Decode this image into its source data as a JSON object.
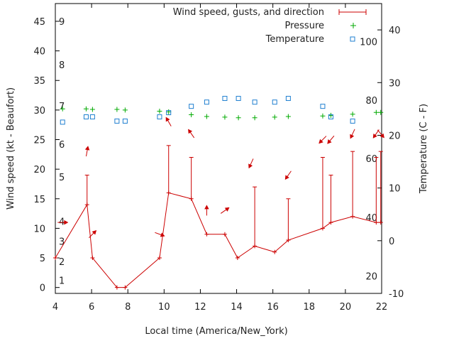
{
  "chart_data": {
    "type": "line",
    "xlabel": "Local time (America/New_York)",
    "ylabel_left": "Wind speed (kt - Beaufort)",
    "ylabel_right": "Temperature (C - F)",
    "xlim": [
      4,
      22
    ],
    "ylim_left": [
      -1,
      48
    ],
    "ylim_right": [
      -10,
      45
    ],
    "x_ticks": [
      4,
      6,
      8,
      10,
      12,
      14,
      16,
      18,
      20,
      22
    ],
    "y_left_ticks": [
      0,
      5,
      10,
      15,
      20,
      25,
      30,
      35,
      40,
      45
    ],
    "y_right_ticks": [
      -10,
      0,
      10,
      20,
      30,
      40
    ],
    "beaufort_labels": [
      {
        "label": "1",
        "kt": 1.2
      },
      {
        "label": "2",
        "kt": 4.4
      },
      {
        "label": "3",
        "kt": 7.8
      },
      {
        "label": "4",
        "kt": 11.2
      },
      {
        "label": "5",
        "kt": 18.7
      },
      {
        "label": "6",
        "kt": 24.2
      },
      {
        "label": "7",
        "kt": 30.7
      },
      {
        "label": "8",
        "kt": 37.7
      },
      {
        "label": "9",
        "kt": 45
      }
    ],
    "fahrenheit_labels": [
      {
        "label": "20",
        "c": -6.7
      },
      {
        "label": "40",
        "c": 4.4
      },
      {
        "label": "60",
        "c": 15.6
      },
      {
        "label": "80",
        "c": 26.7
      },
      {
        "label": "100",
        "c": 37.8
      }
    ],
    "legend": {
      "position": "top-right",
      "entries": [
        "Wind speed, gusts, and direction",
        "Pressure",
        "Temperature"
      ]
    },
    "colors": {
      "wind": "#cc0000",
      "pressure": "#00aa00",
      "temperature": "#1f7fd0"
    },
    "wind": {
      "name": "Wind speed, gusts, and direction",
      "x": [
        4.0,
        5.75,
        6.05,
        7.4,
        7.85,
        9.75,
        10.25,
        11.5,
        12.35,
        13.35,
        14.05,
        15.0,
        16.1,
        16.85,
        18.75,
        19.2,
        20.4,
        21.7,
        21.95
      ],
      "speed": [
        5,
        14,
        5,
        0,
        0,
        5,
        16,
        15,
        9,
        9,
        5,
        7,
        6,
        8,
        10,
        11,
        12,
        11,
        11
      ],
      "gusts": [
        null,
        19,
        null,
        null,
        null,
        null,
        24,
        22,
        null,
        null,
        null,
        17,
        null,
        15,
        22,
        19,
        23,
        22,
        23
      ]
    },
    "wind_direction_arrows": [
      {
        "x": 4.4,
        "kt": 11,
        "dir_deg": 270
      },
      {
        "x": 5.75,
        "kt": 23,
        "dir_deg": 190
      },
      {
        "x": 6.05,
        "kt": 9,
        "dir_deg": 225
      },
      {
        "x": 9.75,
        "kt": 9,
        "dir_deg": 290
      },
      {
        "x": 10.25,
        "kt": 28,
        "dir_deg": 150
      },
      {
        "x": 11.5,
        "kt": 26,
        "dir_deg": 145
      },
      {
        "x": 12.35,
        "kt": 13,
        "dir_deg": 180
      },
      {
        "x": 13.35,
        "kt": 13,
        "dir_deg": 235
      },
      {
        "x": 14.8,
        "kt": 21,
        "dir_deg": 25
      },
      {
        "x": 16.85,
        "kt": 19,
        "dir_deg": 35
      },
      {
        "x": 18.75,
        "kt": 25,
        "dir_deg": 45
      },
      {
        "x": 19.2,
        "kt": 25,
        "dir_deg": 40
      },
      {
        "x": 20.4,
        "kt": 26,
        "dir_deg": 25
      },
      {
        "x": 21.7,
        "kt": 26,
        "dir_deg": 35
      },
      {
        "x": 21.95,
        "kt": 26,
        "dir_deg": 320
      }
    ],
    "pressure": {
      "name": "Pressure",
      "x": [
        4.4,
        5.7,
        6.05,
        7.4,
        7.85,
        9.75,
        10.25,
        11.5,
        12.35,
        13.35,
        14.1,
        15.0,
        16.1,
        16.85,
        18.75,
        19.2,
        20.4,
        21.7,
        21.95
      ],
      "kt": [
        30.2,
        30.2,
        30.1,
        30.1,
        30.0,
        29.8,
        29.7,
        29.2,
        28.9,
        28.8,
        28.7,
        28.7,
        28.8,
        28.9,
        29.0,
        29.1,
        29.3,
        29.6,
        29.6
      ]
    },
    "temperature": {
      "name": "Temperature",
      "x": [
        4.4,
        5.7,
        6.05,
        7.4,
        7.85,
        9.75,
        10.25,
        11.5,
        12.35,
        13.35,
        14.1,
        15.0,
        16.1,
        16.85,
        18.75,
        19.2,
        20.4
      ],
      "c": [
        22.5,
        23.5,
        23.5,
        22.7,
        22.7,
        23.5,
        24.3,
        25.5,
        26.3,
        27.0,
        27.0,
        26.3,
        26.3,
        27.0,
        25.5,
        23.5,
        22.7
      ]
    },
    "grid": false
  }
}
